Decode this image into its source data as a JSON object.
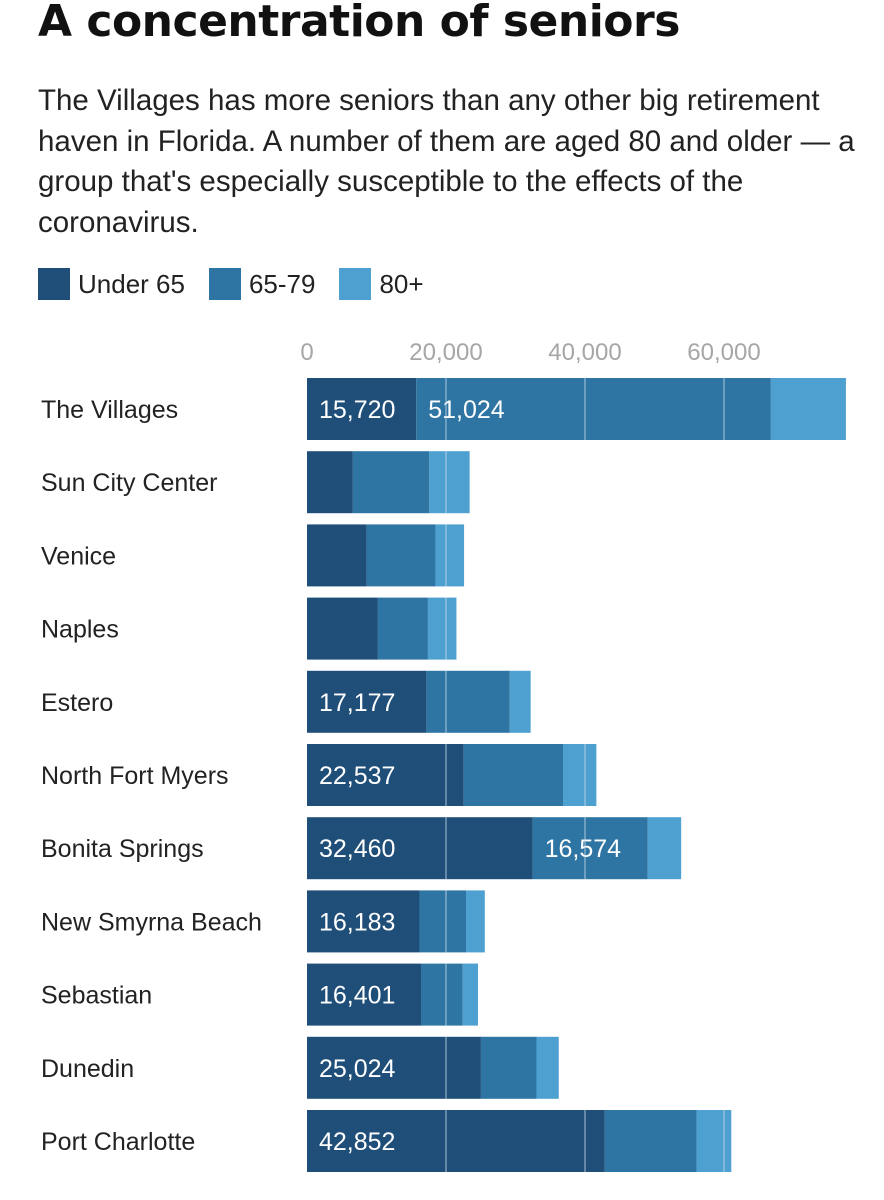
{
  "title": "A concentration of seniors",
  "subtitle": "The Villages has more seniors than any other big retirement haven in Florida. A number of them are aged 80 and older — a group that's especially susceptible to the effects of the coronavirus.",
  "colors": {
    "under65": "#1f4e79",
    "age65_79": "#2e75a3",
    "age80plus": "#4da0cf",
    "grid": "#c9dbe8",
    "tick": "#a6a6a6"
  },
  "legend": [
    {
      "label": "Under 65",
      "color": "#1f4e79"
    },
    {
      "label": "65-79",
      "color": "#2e75a3"
    },
    {
      "label": "80+",
      "color": "#4da0cf"
    }
  ],
  "chart_data": {
    "type": "bar",
    "orientation": "horizontal",
    "stacked": true,
    "categories": [
      "The Villages",
      "Sun City Center",
      "Venice",
      "Naples",
      "Estero",
      "North Fort Myers",
      "Bonita Springs",
      "New Smyrna Beach",
      "Sebastian",
      "Dunedin",
      "Port Charlotte"
    ],
    "series": [
      {
        "name": "Under 65",
        "values": [
          15720,
          6600,
          8600,
          10200,
          17177,
          22537,
          32460,
          16183,
          16401,
          25024,
          42852
        ]
      },
      {
        "name": "65-79",
        "values": [
          51024,
          11000,
          9900,
          7200,
          12000,
          14300,
          16574,
          6700,
          6000,
          8000,
          13200
        ]
      },
      {
        "name": "80+",
        "values": [
          10800,
          5800,
          4100,
          4100,
          3000,
          4800,
          4800,
          2700,
          2200,
          3200,
          5000
        ]
      }
    ],
    "data_labels": [
      [
        "15,720",
        "51,024",
        null
      ],
      [
        null,
        null,
        null
      ],
      [
        null,
        null,
        null
      ],
      [
        null,
        null,
        null
      ],
      [
        "17,177",
        null,
        null
      ],
      [
        "22,537",
        null,
        null
      ],
      [
        "32,460",
        "16,574",
        null
      ],
      [
        "16,183",
        null,
        null
      ],
      [
        "16,401",
        null,
        null
      ],
      [
        "25,024",
        null,
        null
      ],
      [
        "42,852",
        null,
        null
      ]
    ],
    "x_ticks": [
      0,
      20000,
      40000,
      60000
    ],
    "x_tick_labels": [
      "0",
      "20,000",
      "40,000",
      "60,000"
    ],
    "xlim": [
      0,
      78000
    ],
    "grid": true,
    "legend_position": "top-left"
  }
}
